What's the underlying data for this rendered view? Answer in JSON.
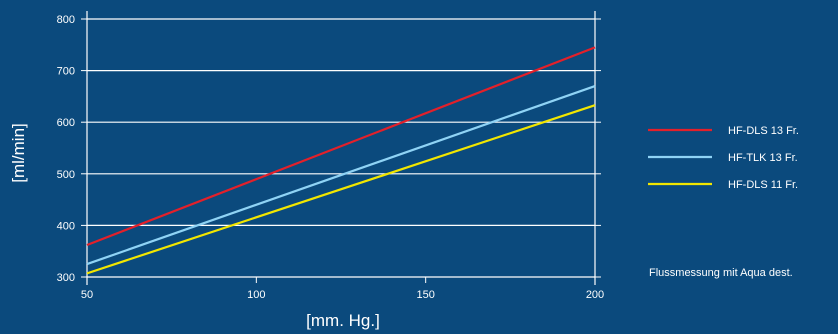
{
  "chart_data": {
    "type": "line",
    "x": [
      50,
      200
    ],
    "series": [
      {
        "name": "HF-DLS 13 Fr.",
        "color": "#e3202a",
        "values": [
          362,
          745
        ]
      },
      {
        "name": "HF-TLK 13 Fr.",
        "color": "#8fd3f5",
        "values": [
          325,
          670
        ]
      },
      {
        "name": "HF-DLS 11 Fr.",
        "color": "#f2e600",
        "values": [
          307,
          633
        ]
      }
    ],
    "title": "",
    "xlabel": "[mm. Hg.]",
    "ylabel": "[ml/min]",
    "xlim": [
      50,
      200
    ],
    "ylim": [
      300,
      800
    ],
    "xticks": [
      50,
      100,
      150,
      200
    ],
    "yticks": [
      300,
      400,
      500,
      600,
      700,
      800
    ],
    "grid": "horizontal",
    "legend_position": "right",
    "annotation": "Flussmessung mit Aqua dest."
  }
}
